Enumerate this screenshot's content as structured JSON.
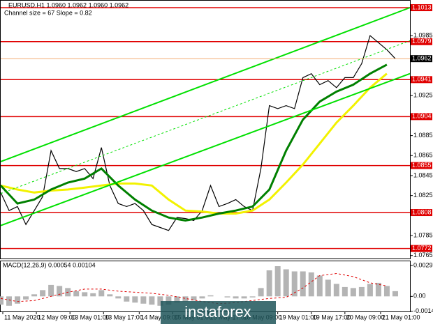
{
  "chart_data": [
    {
      "type": "line",
      "title": "EURUSD,H1 1.0960 1.0962 1.0960 1.0962",
      "subtitle": "Channel size = 67 Slope = 0.82",
      "xlim": [
        0,
        195
      ],
      "xticks": [
        {
          "value": 1,
          "label": "11 May 2020"
        },
        {
          "value": 17,
          "label": "12 May 09:00"
        },
        {
          "value": 33,
          "label": "13 May 01:00"
        },
        {
          "value": 49,
          "label": "13 May 17:00"
        },
        {
          "value": 66,
          "label": "14 May 09:00"
        },
        {
          "value": 82,
          "label": "15 May 01:00"
        },
        {
          "value": 99,
          "label": "15 May 17:00"
        },
        {
          "value": 115,
          "label": "18 May 09:00"
        },
        {
          "value": 132,
          "label": "19 May 01:00"
        },
        {
          "value": 148,
          "label": "19 May 17:00"
        },
        {
          "value": 164,
          "label": "20 May 09:00"
        },
        {
          "value": 181,
          "label": "21 May 01:00"
        }
      ],
      "ylim": [
        1.0762,
        1.102
      ],
      "yticks": [
        1.0985,
        1.0925,
        1.0885,
        1.0865,
        1.0845,
        1.0825,
        1.0785,
        1.0765
      ],
      "levels": [
        1.1013,
        1.0979,
        1.0941,
        1.0904,
        1.0855,
        1.0808,
        1.0772
      ],
      "level_color": "#e00000",
      "current_price": 1.0962,
      "series": [
        {
          "color": "#000000",
          "width": 1.2,
          "x": [
            0,
            4,
            8,
            12,
            16,
            20,
            24,
            28,
            32,
            36,
            40,
            44,
            48,
            52,
            56,
            60,
            64,
            68,
            72,
            76,
            80,
            84,
            88,
            92,
            96,
            100,
            104,
            108,
            112,
            116,
            120,
            124,
            128,
            132,
            136,
            140,
            144,
            148,
            152,
            156,
            160,
            164,
            168,
            172,
            176,
            180,
            184,
            188
          ],
          "values": [
            1.0828,
            1.081,
            1.0814,
            1.0796,
            1.081,
            1.0824,
            1.087,
            1.0852,
            1.0852,
            1.0849,
            1.0852,
            1.0842,
            1.0873,
            1.0835,
            1.0817,
            1.0814,
            1.0817,
            1.081,
            1.0796,
            1.0793,
            1.079,
            1.0803,
            1.0802,
            1.08,
            1.081,
            1.0835,
            1.0814,
            1.0817,
            1.0821,
            1.0814,
            1.081,
            1.0852,
            1.0915,
            1.0912,
            1.0915,
            1.0912,
            1.0943,
            1.0947,
            1.0936,
            1.094,
            1.0933,
            1.0943,
            1.0943,
            1.0957,
            1.0985,
            1.0978,
            1.0971,
            1.0962
          ]
        },
        {
          "color": "#f2f200",
          "width": 3,
          "x": [
            0,
            8,
            16,
            24,
            32,
            40,
            48,
            56,
            64,
            72,
            80,
            88,
            96,
            104,
            112,
            120,
            128,
            136,
            144,
            152,
            160,
            168,
            176,
            184
          ],
          "values": [
            1.0835,
            1.0831,
            1.0828,
            1.083,
            1.0831,
            1.0833,
            1.0835,
            1.0837,
            1.0837,
            1.0835,
            1.0821,
            1.081,
            1.0809,
            1.0807,
            1.0807,
            1.081,
            1.0821,
            1.0838,
            1.0856,
            1.0877,
            1.0898,
            1.0915,
            1.0933,
            1.0947
          ]
        },
        {
          "color": "#008000",
          "width": 3,
          "x": [
            0,
            8,
            16,
            24,
            32,
            40,
            48,
            56,
            64,
            72,
            80,
            88,
            96,
            104,
            112,
            120,
            128,
            136,
            144,
            152,
            160,
            168,
            176,
            184
          ],
          "values": [
            1.0835,
            1.0817,
            1.0821,
            1.0831,
            1.0838,
            1.0842,
            1.0852,
            1.0835,
            1.0821,
            1.081,
            1.0803,
            1.08,
            1.0803,
            1.0807,
            1.081,
            1.0814,
            1.0831,
            1.087,
            1.0901,
            1.0919,
            1.0929,
            1.0936,
            1.0947,
            1.0956
          ]
        },
        {
          "color": "#00e000",
          "width": 2,
          "x": [
            0,
            195
          ],
          "values": [
            1.0859,
            1.1013
          ]
        },
        {
          "color": "#00e000",
          "width": 1,
          "dashed": true,
          "x": [
            0,
            195
          ],
          "values": [
            1.0827,
            1.098
          ]
        },
        {
          "color": "#00e000",
          "width": 2,
          "x": [
            0,
            195
          ],
          "values": [
            1.0795,
            1.0947
          ]
        }
      ]
    },
    {
      "type": "bar",
      "title": "MACD(12,26,9) 0.00054 0.00104",
      "xlim": [
        0,
        195
      ],
      "ylim": [
        -0.00145,
        0.00337
      ],
      "yticks": [
        0.00297,
        {
          "value": 0,
          "label": "0.00"
        },
        -0.00144
      ],
      "color": "#b4b4b4",
      "x": [
        0,
        4,
        8,
        12,
        16,
        20,
        24,
        28,
        32,
        36,
        40,
        44,
        48,
        52,
        56,
        60,
        64,
        68,
        72,
        76,
        80,
        84,
        88,
        92,
        96,
        100,
        104,
        108,
        112,
        116,
        120,
        124,
        128,
        132,
        136,
        140,
        144,
        148,
        152,
        156,
        160,
        164,
        168,
        172,
        176,
        180,
        184,
        188
      ],
      "values": [
        -0.0008,
        -0.0009,
        -0.0007,
        -0.0003,
        0.0002,
        0.0006,
        0.0011,
        0.001,
        0.0008,
        0.0005,
        0.0004,
        0.0003,
        0.0006,
        0.0002,
        -0.0002,
        -0.0005,
        -0.0006,
        -0.0007,
        -0.0008,
        -0.0009,
        -0.0008,
        -0.0006,
        -0.0005,
        -0.0004,
        -0.0002,
        0.0001,
        0.0,
        -0.0001,
        -0.0002,
        -0.0002,
        -0.0001,
        0.0008,
        0.0025,
        0.0029,
        0.0026,
        0.0024,
        0.0024,
        0.0023,
        0.002,
        0.0016,
        0.0012,
        0.0009,
        0.0008,
        0.0009,
        0.0012,
        0.0013,
        0.001,
        0.0005
      ],
      "signal": {
        "color": "#e00000",
        "x": [
          0,
          8,
          16,
          24,
          32,
          40,
          48,
          56,
          64,
          72,
          80,
          88,
          96,
          104,
          112,
          120,
          128,
          136,
          144,
          152,
          160,
          168,
          176,
          184
        ],
        "values": [
          -0.0002,
          -0.0005,
          -0.0004,
          0.0,
          0.0004,
          0.0007,
          0.0007,
          0.0005,
          0.0004,
          0.0003,
          0.0001,
          -0.0002,
          -0.0005,
          -0.0007,
          -0.0006,
          -0.0004,
          -0.0002,
          -0.0001,
          0.0008,
          0.002,
          0.0022,
          0.0019,
          0.0013,
          0.001
        ]
      },
      "watermark": "instaforex"
    }
  ]
}
